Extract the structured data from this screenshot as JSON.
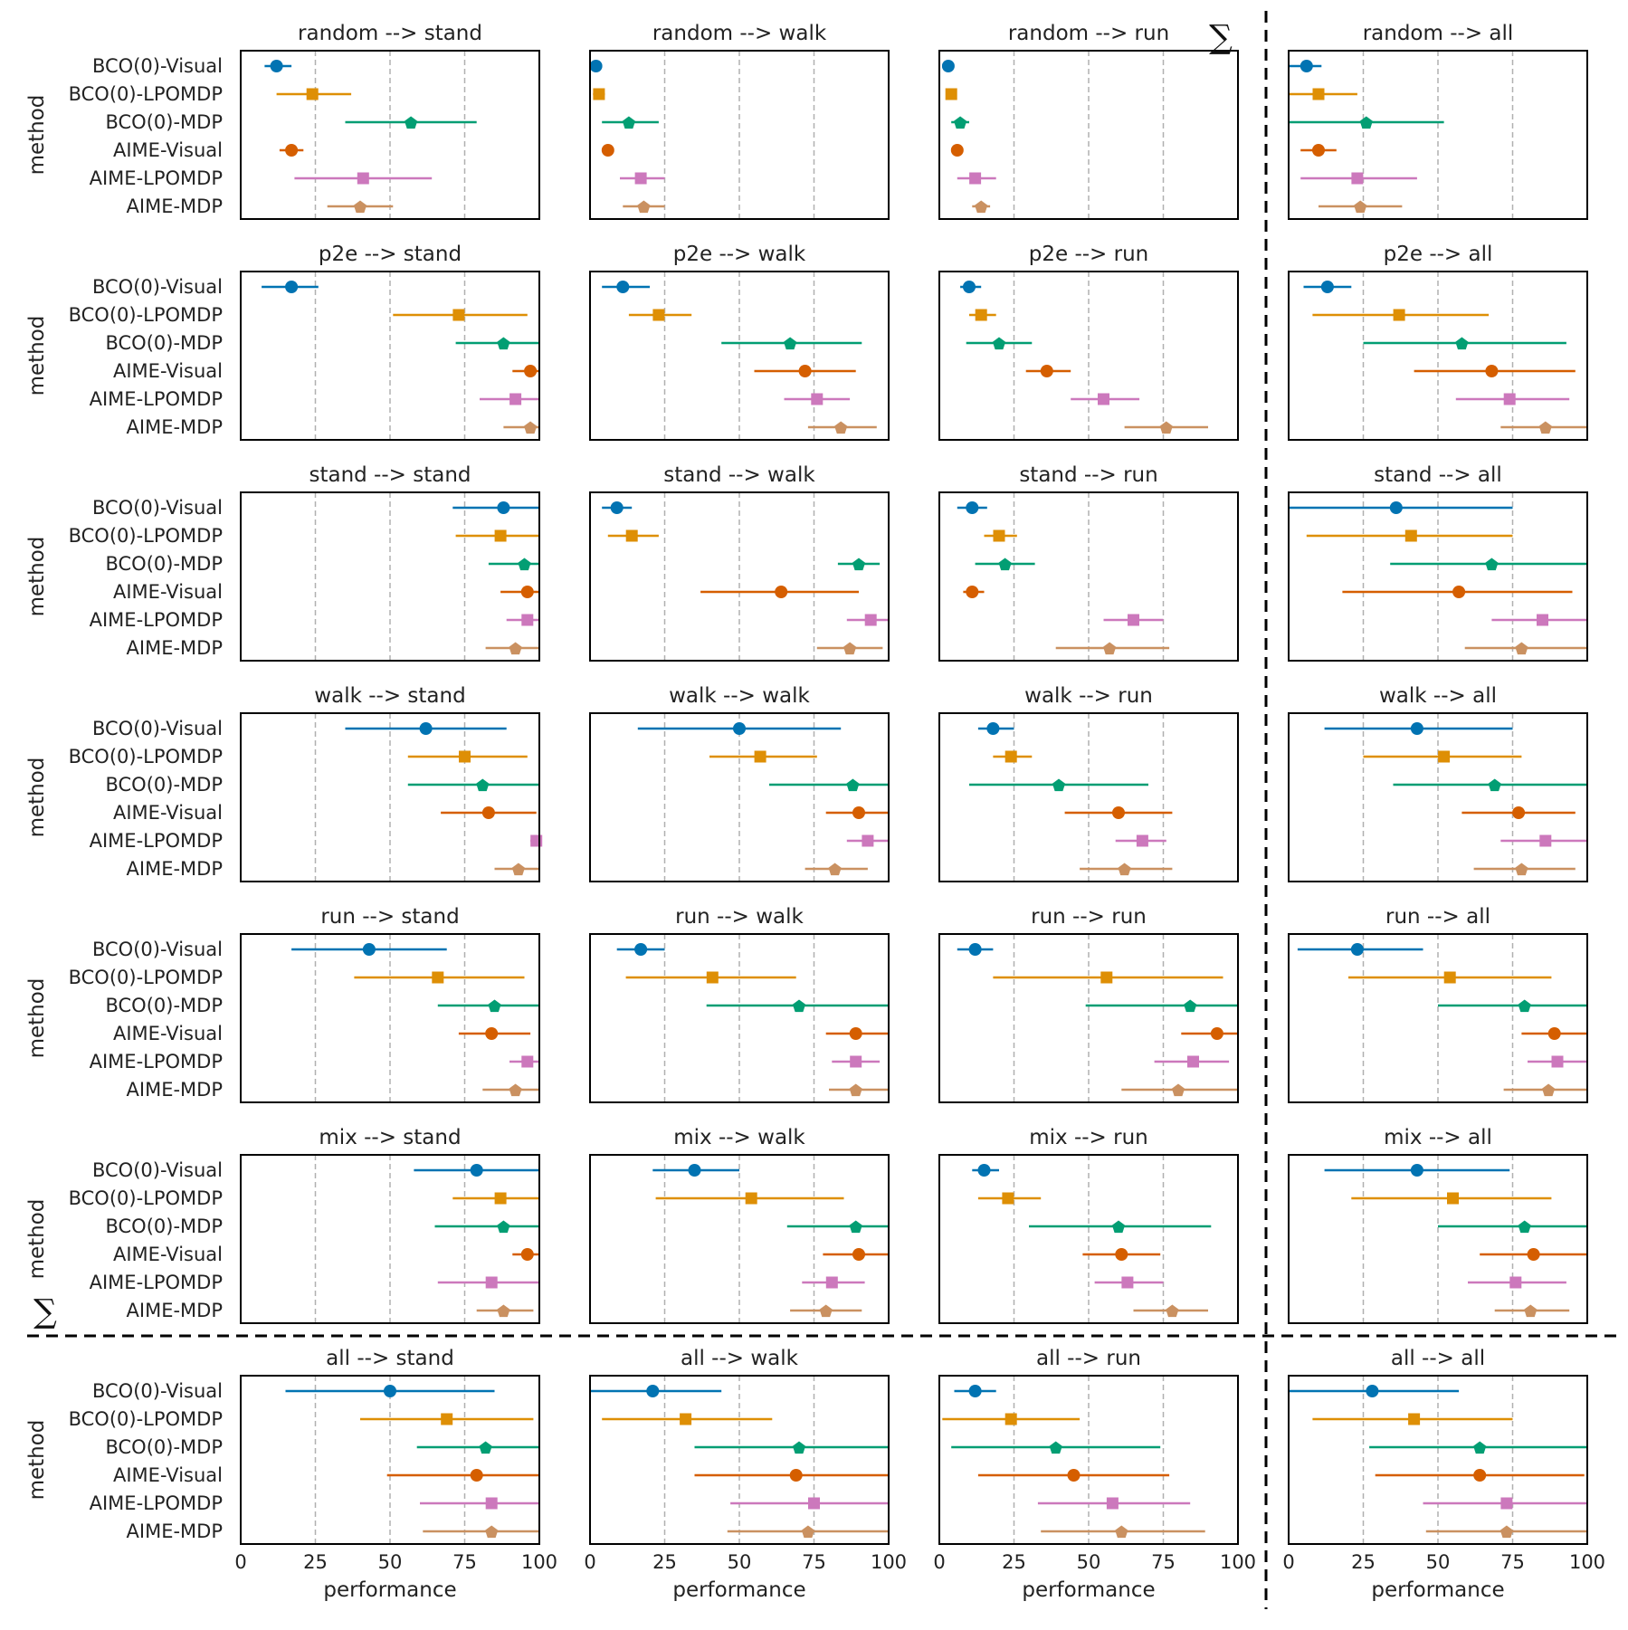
{
  "chart_data": {
    "type": "scatter",
    "subtype": "point-estimates-with-error-bars",
    "ylabel": "method",
    "xlabel": "performance",
    "xlim": [
      0,
      100
    ],
    "xticks": [
      "0",
      "25",
      "50",
      "75",
      "100"
    ],
    "sum_symbol": "∑",
    "methods": [
      "BCO(0)-Visual",
      "BCO(0)-LPOMDP",
      "BCO(0)-MDP",
      "AIME-Visual",
      "AIME-LPOMDP",
      "AIME-MDP"
    ],
    "colors": [
      "#0173b2",
      "#de8f05",
      "#029e73",
      "#d55e00",
      "#cc78bc",
      "#ca9161"
    ],
    "markers": [
      "circle",
      "square",
      "pentagon",
      "circle",
      "square",
      "pentagon"
    ],
    "panels": [
      {
        "title": "random -->  stand",
        "points": [
          [
            12,
            8,
            17
          ],
          [
            24,
            12,
            37
          ],
          [
            57,
            35,
            79
          ],
          [
            17,
            13,
            21
          ],
          [
            41,
            18,
            64
          ],
          [
            40,
            29,
            51
          ]
        ]
      },
      {
        "title": "random -->  walk",
        "points": [
          [
            2,
            0,
            4
          ],
          [
            3,
            1,
            5
          ],
          [
            13,
            4,
            23
          ],
          [
            6,
            5,
            7
          ],
          [
            17,
            10,
            25
          ],
          [
            18,
            11,
            25
          ]
        ]
      },
      {
        "title": "random -->  run",
        "points": [
          [
            3,
            2,
            4
          ],
          [
            4,
            3,
            5
          ],
          [
            7,
            4,
            10
          ],
          [
            6,
            5,
            7
          ],
          [
            12,
            6,
            19
          ],
          [
            14,
            11,
            17
          ]
        ]
      },
      {
        "title": "random -->  all",
        "points": [
          [
            6,
            0,
            11
          ],
          [
            10,
            0,
            23
          ],
          [
            26,
            0,
            52
          ],
          [
            10,
            4,
            16
          ],
          [
            23,
            4,
            43
          ],
          [
            24,
            10,
            38
          ]
        ]
      },
      {
        "title": "p2e -->  stand",
        "points": [
          [
            17,
            7,
            26
          ],
          [
            73,
            51,
            96
          ],
          [
            88,
            72,
            100
          ],
          [
            97,
            91,
            100
          ],
          [
            92,
            80,
            100
          ],
          [
            97,
            88,
            100
          ]
        ]
      },
      {
        "title": "p2e -->  walk",
        "points": [
          [
            11,
            4,
            20
          ],
          [
            23,
            13,
            34
          ],
          [
            67,
            44,
            91
          ],
          [
            72,
            55,
            89
          ],
          [
            76,
            65,
            87
          ],
          [
            84,
            73,
            96
          ]
        ]
      },
      {
        "title": "p2e -->  run",
        "points": [
          [
            10,
            7,
            14
          ],
          [
            14,
            10,
            19
          ],
          [
            20,
            9,
            31
          ],
          [
            36,
            29,
            44
          ],
          [
            55,
            44,
            67
          ],
          [
            76,
            62,
            90
          ]
        ]
      },
      {
        "title": "p2e -->  all",
        "points": [
          [
            13,
            5,
            21
          ],
          [
            37,
            8,
            67
          ],
          [
            58,
            25,
            93
          ],
          [
            68,
            42,
            96
          ],
          [
            74,
            56,
            94
          ],
          [
            86,
            71,
            100
          ]
        ]
      },
      {
        "title": "stand -->  stand",
        "points": [
          [
            88,
            71,
            100
          ],
          [
            87,
            72,
            100
          ],
          [
            95,
            83,
            100
          ],
          [
            96,
            87,
            100
          ],
          [
            96,
            89,
            100
          ],
          [
            92,
            82,
            100
          ]
        ]
      },
      {
        "title": "stand -->  walk",
        "points": [
          [
            9,
            4,
            14
          ],
          [
            14,
            6,
            23
          ],
          [
            90,
            83,
            97
          ],
          [
            64,
            37,
            90
          ],
          [
            94,
            86,
            100
          ],
          [
            87,
            76,
            98
          ]
        ]
      },
      {
        "title": "stand -->  run",
        "points": [
          [
            11,
            6,
            16
          ],
          [
            20,
            15,
            26
          ],
          [
            22,
            12,
            32
          ],
          [
            11,
            8,
            15
          ],
          [
            65,
            55,
            75
          ],
          [
            57,
            39,
            77
          ]
        ]
      },
      {
        "title": "stand -->  all",
        "points": [
          [
            36,
            0,
            75
          ],
          [
            41,
            6,
            75
          ],
          [
            68,
            34,
            100
          ],
          [
            57,
            18,
            95
          ],
          [
            85,
            68,
            100
          ],
          [
            78,
            59,
            100
          ]
        ]
      },
      {
        "title": "walk -->  stand",
        "points": [
          [
            62,
            35,
            89
          ],
          [
            75,
            56,
            96
          ],
          [
            81,
            56,
            100
          ],
          [
            83,
            67,
            99
          ],
          [
            99,
            97,
            100
          ],
          [
            93,
            85,
            100
          ]
        ]
      },
      {
        "title": "walk -->  walk",
        "points": [
          [
            50,
            16,
            84
          ],
          [
            57,
            40,
            76
          ],
          [
            88,
            60,
            100
          ],
          [
            90,
            79,
            100
          ],
          [
            93,
            86,
            100
          ],
          [
            82,
            72,
            93
          ]
        ]
      },
      {
        "title": "walk -->  run",
        "points": [
          [
            18,
            13,
            25
          ],
          [
            24,
            18,
            31
          ],
          [
            40,
            10,
            70
          ],
          [
            60,
            42,
            78
          ],
          [
            68,
            59,
            76
          ],
          [
            62,
            47,
            78
          ]
        ]
      },
      {
        "title": "walk -->  all",
        "points": [
          [
            43,
            12,
            75
          ],
          [
            52,
            25,
            78
          ],
          [
            69,
            35,
            100
          ],
          [
            77,
            58,
            96
          ],
          [
            86,
            71,
            100
          ],
          [
            78,
            62,
            96
          ]
        ]
      },
      {
        "title": "run -->  stand",
        "points": [
          [
            43,
            17,
            69
          ],
          [
            66,
            38,
            95
          ],
          [
            85,
            66,
            100
          ],
          [
            84,
            73,
            97
          ],
          [
            96,
            90,
            100
          ],
          [
            92,
            81,
            100
          ]
        ]
      },
      {
        "title": "run -->  walk",
        "points": [
          [
            17,
            9,
            25
          ],
          [
            41,
            12,
            69
          ],
          [
            70,
            39,
            100
          ],
          [
            89,
            79,
            100
          ],
          [
            89,
            81,
            97
          ],
          [
            89,
            80,
            100
          ]
        ]
      },
      {
        "title": "run -->  run",
        "points": [
          [
            12,
            6,
            18
          ],
          [
            56,
            18,
            95
          ],
          [
            84,
            49,
            100
          ],
          [
            93,
            81,
            100
          ],
          [
            85,
            72,
            97
          ],
          [
            80,
            61,
            100
          ]
        ]
      },
      {
        "title": "run -->  all",
        "points": [
          [
            23,
            3,
            45
          ],
          [
            54,
            20,
            88
          ],
          [
            79,
            50,
            100
          ],
          [
            89,
            78,
            100
          ],
          [
            90,
            80,
            100
          ],
          [
            87,
            72,
            100
          ]
        ]
      },
      {
        "title": "mix -->  stand",
        "points": [
          [
            79,
            58,
            100
          ],
          [
            87,
            71,
            100
          ],
          [
            88,
            65,
            100
          ],
          [
            96,
            91,
            100
          ],
          [
            84,
            66,
            100
          ],
          [
            88,
            79,
            98
          ]
        ]
      },
      {
        "title": "mix -->  walk",
        "points": [
          [
            35,
            21,
            50
          ],
          [
            54,
            22,
            85
          ],
          [
            89,
            66,
            100
          ],
          [
            90,
            78,
            100
          ],
          [
            81,
            71,
            92
          ],
          [
            79,
            67,
            91
          ]
        ]
      },
      {
        "title": "mix -->  run",
        "points": [
          [
            15,
            11,
            20
          ],
          [
            23,
            13,
            34
          ],
          [
            60,
            30,
            91
          ],
          [
            61,
            48,
            74
          ],
          [
            63,
            52,
            75
          ],
          [
            78,
            65,
            90
          ]
        ]
      },
      {
        "title": "mix -->  all",
        "points": [
          [
            43,
            12,
            74
          ],
          [
            55,
            21,
            88
          ],
          [
            79,
            50,
            100
          ],
          [
            82,
            64,
            100
          ],
          [
            76,
            60,
            93
          ],
          [
            81,
            69,
            94
          ]
        ]
      },
      {
        "title": "all -->  stand",
        "points": [
          [
            50,
            15,
            85
          ],
          [
            69,
            40,
            98
          ],
          [
            82,
            59,
            100
          ],
          [
            79,
            49,
            100
          ],
          [
            84,
            60,
            100
          ],
          [
            84,
            61,
            100
          ]
        ]
      },
      {
        "title": "all -->  walk",
        "points": [
          [
            21,
            0,
            44
          ],
          [
            32,
            4,
            61
          ],
          [
            70,
            35,
            100
          ],
          [
            69,
            35,
            100
          ],
          [
            75,
            47,
            100
          ],
          [
            73,
            46,
            100
          ]
        ]
      },
      {
        "title": "all -->  run",
        "points": [
          [
            12,
            5,
            19
          ],
          [
            24,
            1,
            47
          ],
          [
            39,
            4,
            74
          ],
          [
            45,
            13,
            77
          ],
          [
            58,
            33,
            84
          ],
          [
            61,
            34,
            89
          ]
        ]
      },
      {
        "title": "all -->  all",
        "points": [
          [
            28,
            0,
            57
          ],
          [
            42,
            8,
            75
          ],
          [
            64,
            27,
            100
          ],
          [
            64,
            29,
            99
          ],
          [
            73,
            45,
            100
          ],
          [
            73,
            46,
            100
          ]
        ]
      }
    ]
  }
}
